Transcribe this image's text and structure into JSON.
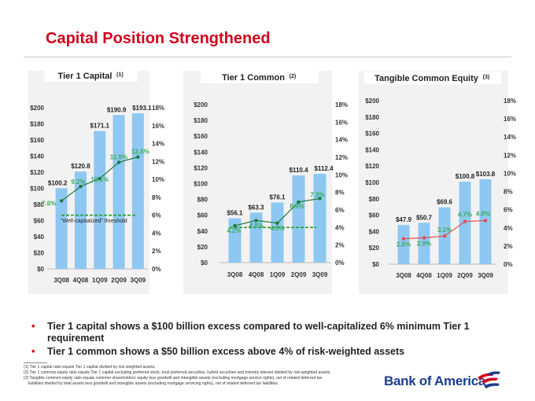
{
  "title": "Capital Position Strengthened",
  "colors": {
    "bar": "#8ec8f2",
    "line": "#1f7a3a",
    "label_green": "#3daa5a",
    "threshold": "#2a9a2a",
    "title": "#d0021b",
    "brand": "#1b3d8f"
  },
  "chart_data": [
    {
      "type": "bar",
      "title": "Tier 1 Capital",
      "title_note": "(1)",
      "categories": [
        "3Q08",
        "4Q08",
        "1Q09",
        "2Q09",
        "3Q09"
      ],
      "values": [
        100.2,
        120.8,
        171.1,
        190.9,
        193.1
      ],
      "value_labels": [
        "$100.2",
        "$120.8",
        "$171.1",
        "$190.9",
        "$193.1"
      ],
      "ylim": [
        0,
        200
      ],
      "y_ticks": [
        "$0",
        "$20",
        "$40",
        "$60",
        "$80",
        "$100",
        "$120",
        "$140",
        "$160",
        "$180",
        "$200"
      ],
      "y2lim": [
        0,
        18
      ],
      "y2_ticks": [
        "0%",
        "2%",
        "4%",
        "6%",
        "8%",
        "10%",
        "12%",
        "14%",
        "16%",
        "18%"
      ],
      "ratio_series": {
        "name": "Tier 1 capital ratio",
        "values": [
          7.6,
          9.2,
          10.1,
          11.9,
          12.5
        ],
        "labels": [
          "7.6%",
          "9.2%",
          "10.1%",
          "11.9%",
          "12.5%"
        ]
      },
      "threshold": {
        "value": 6,
        "label": "\"Well-capitalized\" threshold"
      }
    },
    {
      "type": "bar",
      "title": "Tier 1 Common",
      "title_note": "(2)",
      "categories": [
        "3Q08",
        "4Q08",
        "1Q09",
        "2Q09",
        "3Q09"
      ],
      "values": [
        56.1,
        63.3,
        76.1,
        110.4,
        112.4
      ],
      "value_labels": [
        "$56.1",
        "$63.3",
        "$76.1",
        "$110.4",
        "$112.4"
      ],
      "ylim": [
        0,
        200
      ],
      "y_ticks": [
        "$0",
        "$20",
        "$40",
        "$60",
        "$80",
        "$100",
        "$120",
        "$140",
        "$160",
        "$180",
        "$200"
      ],
      "y2lim": [
        0,
        18
      ],
      "y2_ticks": [
        "0%",
        "2%",
        "4%",
        "6%",
        "8%",
        "10%",
        "12%",
        "14%",
        "16%",
        "18%"
      ],
      "ratio_series": {
        "name": "Tier 1 common ratio",
        "values": [
          4.2,
          4.8,
          4.5,
          6.9,
          7.3
        ],
        "labels": [
          "4.2%",
          "4.8%",
          "4.5%",
          "6.9%",
          "7.3%"
        ]
      },
      "threshold": {
        "value": 4,
        "label": ""
      }
    },
    {
      "type": "bar",
      "title": "Tangible Common Equity",
      "title_note": "(3)",
      "categories": [
        "3Q08",
        "4Q08",
        "1Q09",
        "2Q09",
        "3Q09"
      ],
      "values": [
        47.9,
        50.7,
        69.6,
        100.8,
        103.8
      ],
      "value_labels": [
        "$47.9",
        "$50.7",
        "$69.6",
        "$100.8",
        "$103.8"
      ],
      "ylim": [
        0,
        200
      ],
      "y_ticks": [
        "$0",
        "$20",
        "$40",
        "$60",
        "$80",
        "$100",
        "$120",
        "$140",
        "$160",
        "$180",
        "$200"
      ],
      "y2lim": [
        0,
        18
      ],
      "y2_ticks": [
        "0%",
        "2%",
        "4%",
        "6%",
        "8%",
        "10%",
        "12%",
        "14%",
        "16%",
        "18%"
      ],
      "ratio_series": {
        "name": "Tangible common equity ratio",
        "values": [
          2.8,
          2.9,
          3.1,
          4.7,
          4.8
        ],
        "labels": [
          "2.8%",
          "2.9%",
          "3.1%",
          "4.7%",
          "4.8%"
        ]
      },
      "threshold": null
    }
  ],
  "bullets": [
    "Tier 1 capital shows a $100 billion excess compared to well-capitalized 6% minimum Tier 1 requirement",
    "Tier 1 common shows a $50 billion excess above 4% of risk-weighted assets"
  ],
  "footnotes": [
    "(1) Tier 1 capital ratio equals Tier 1 capital divided by risk weighted assets.",
    "(2) Tier 1 common equity ratio equals Tier 1 capital excluding preferred stock, trust preferred securities, hybrid securities and minority interest divided by risk-weighted assets.",
    "(3) Tangible common equity ratio equals common shareholders' equity less goodwill and intangible assets (excluding mortgage service rights), net of related deferred tax",
    "liabilities divided by total assets less goodwill and intangible assets (excluding mortgage servicing rights), net of related deferred tax liabilities."
  ],
  "logo_text": "Bank of America"
}
